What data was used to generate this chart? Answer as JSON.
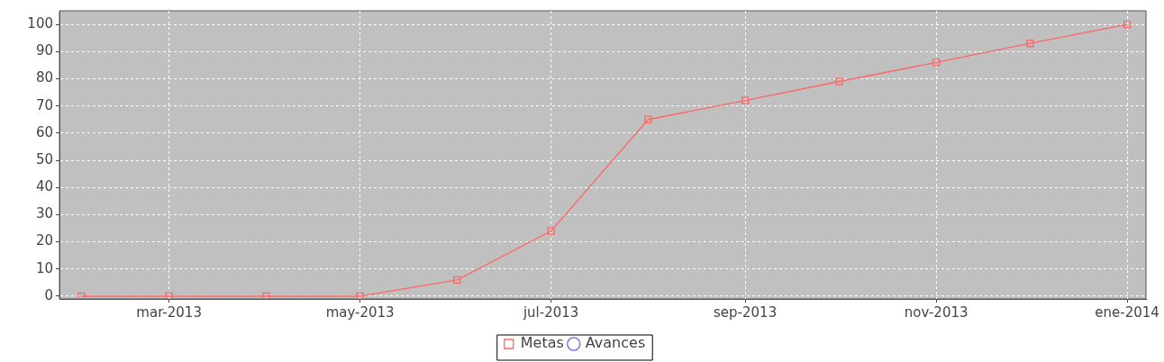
{
  "chart_data": {
    "type": "line",
    "x": [
      "2013-02-01",
      "2013-03-01",
      "2013-04-01",
      "2013-05-01",
      "2013-06-01",
      "2013-07-01",
      "2013-08-01",
      "2013-09-01",
      "2013-10-01",
      "2013-11-01",
      "2013-12-01",
      "2014-01-01"
    ],
    "series": [
      {
        "name": "Metas",
        "color": "#ff6666",
        "marker": "square",
        "values": [
          0,
          0,
          0,
          0,
          6,
          24,
          65,
          72,
          79,
          86,
          93,
          100
        ]
      },
      {
        "name": "Avances",
        "color": "#6666ff",
        "marker": "circle",
        "values": [
          null,
          null,
          null,
          null,
          null,
          null,
          null,
          null,
          null,
          null,
          null,
          null
        ]
      }
    ],
    "xlim": [
      "2013-01-25",
      "2014-01-07"
    ],
    "xticks": [
      {
        "value": "2013-03-01",
        "label": "mar-2013"
      },
      {
        "value": "2013-05-01",
        "label": "may-2013"
      },
      {
        "value": "2013-07-01",
        "label": "jul-2013"
      },
      {
        "value": "2013-09-01",
        "label": "sep-2013"
      },
      {
        "value": "2013-11-01",
        "label": "nov-2013"
      },
      {
        "value": "2014-01-01",
        "label": "ene-2014"
      }
    ],
    "ylim": [
      -1,
      105
    ],
    "yticks": [
      0,
      10,
      20,
      30,
      40,
      50,
      60,
      70,
      80,
      90,
      100
    ],
    "grid": true,
    "legend": "bottom"
  }
}
